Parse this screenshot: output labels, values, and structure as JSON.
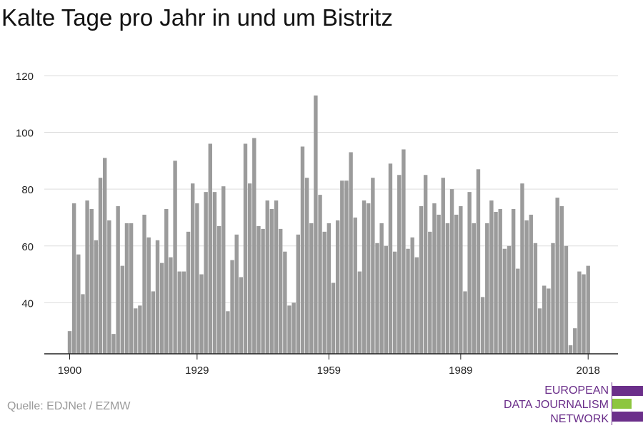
{
  "title": "Kalte Tage pro Jahr in und um Bistritz",
  "source": "Quelle: EDJNet / EZMW",
  "logo": {
    "line1": "EUROPEAN",
    "line2": "DATA JOURNALISM",
    "line3": "NETWORK",
    "purple": "#6b2f8a",
    "green": "#8dc63f"
  },
  "chart_data": {
    "type": "bar",
    "title": "Kalte Tage pro Jahr in und um Bistritz",
    "xlabel": "",
    "ylabel": "",
    "bar_color": "#9b9b9b",
    "ylim": [
      22,
      122
    ],
    "yticks": [
      40,
      60,
      80,
      100,
      120
    ],
    "xticks": [
      1900,
      1929,
      1959,
      1989,
      2018
    ],
    "grid": true,
    "x_start": 1900,
    "values": [
      30,
      75,
      57,
      43,
      76,
      73,
      62,
      84,
      91,
      69,
      29,
      74,
      53,
      68,
      68,
      38,
      39,
      71,
      63,
      44,
      62,
      54,
      73,
      56,
      90,
      51,
      51,
      65,
      82,
      75,
      50,
      79,
      96,
      79,
      67,
      81,
      37,
      55,
      64,
      49,
      96,
      82,
      98,
      67,
      66,
      76,
      73,
      76,
      66,
      58,
      39,
      40,
      64,
      95,
      84,
      68,
      113,
      78,
      65,
      68,
      47,
      69,
      83,
      83,
      93,
      70,
      51,
      76,
      75,
      84,
      61,
      68,
      60,
      89,
      58,
      85,
      94,
      59,
      63,
      56,
      74,
      85,
      65,
      75,
      71,
      84,
      68,
      80,
      71,
      74,
      44,
      79,
      68,
      87,
      42,
      68,
      76,
      72,
      73,
      59,
      60,
      73,
      52,
      82,
      69,
      71,
      61,
      38,
      46,
      45,
      61,
      77,
      74,
      60,
      25,
      31,
      51,
      50,
      53
    ]
  }
}
